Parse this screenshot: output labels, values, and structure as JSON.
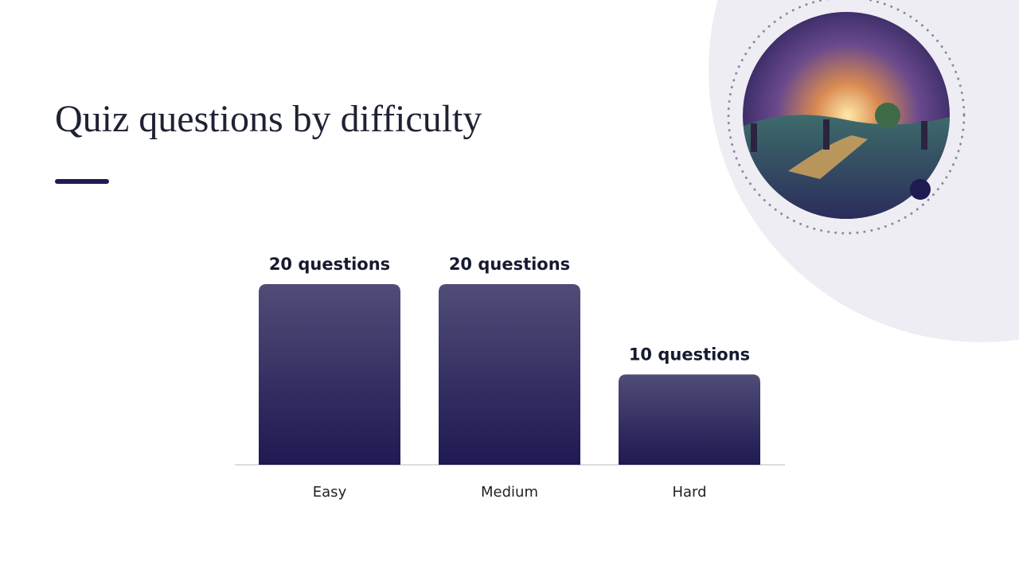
{
  "chart_data": {
    "type": "bar",
    "title": "Quiz questions by difficulty",
    "categories": [
      "Easy",
      "Medium",
      "Hard"
    ],
    "values": [
      20,
      20,
      10
    ],
    "value_labels": [
      "20 questions",
      "20 questions",
      "10 questions"
    ],
    "color": "#1f1a52"
  }
}
